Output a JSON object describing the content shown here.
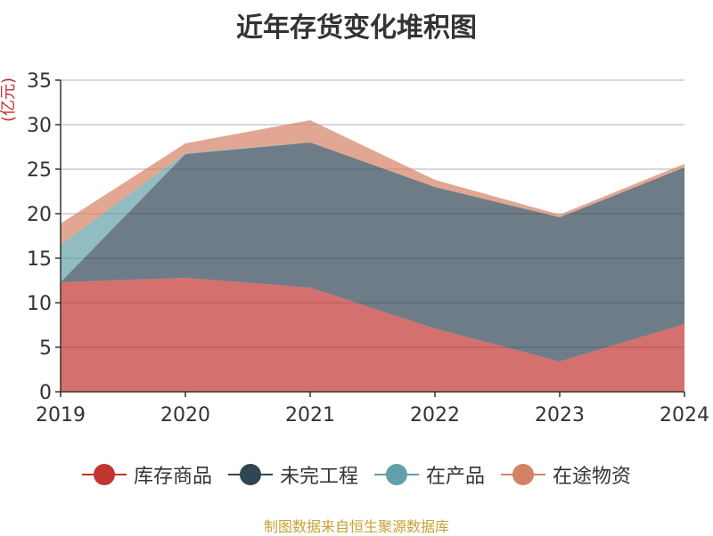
{
  "title": "近年存货变化堆积图",
  "source": "制图数据来自恒生聚源数据库",
  "chart_data": {
    "type": "area",
    "stacked": true,
    "title": "近年存货变化堆积图",
    "ylabel": "(亿元)",
    "xlabel": "",
    "x": [
      "2019",
      "2020",
      "2021",
      "2022",
      "2023",
      "2024"
    ],
    "ylim": [
      0,
      35
    ],
    "yticks": [
      0,
      5,
      10,
      15,
      20,
      25,
      30,
      35
    ],
    "grid": true,
    "legend_position": "bottom",
    "series": [
      {
        "name": "库存商品",
        "color": "#c23531",
        "values": [
          12.3,
          12.8,
          11.7,
          7.1,
          3.4,
          7.6
        ]
      },
      {
        "name": "未完工程",
        "color": "#2f4554",
        "values": [
          0.0,
          13.9,
          16.3,
          15.9,
          16.2,
          17.6
        ]
      },
      {
        "name": "在产品",
        "color": "#61a0a8",
        "values": [
          4.2,
          0.1,
          0.0,
          0.0,
          0.0,
          0.0
        ]
      },
      {
        "name": "在途物资",
        "color": "#d48265",
        "values": [
          2.4,
          1.1,
          2.5,
          0.8,
          0.3,
          0.4
        ]
      }
    ]
  }
}
